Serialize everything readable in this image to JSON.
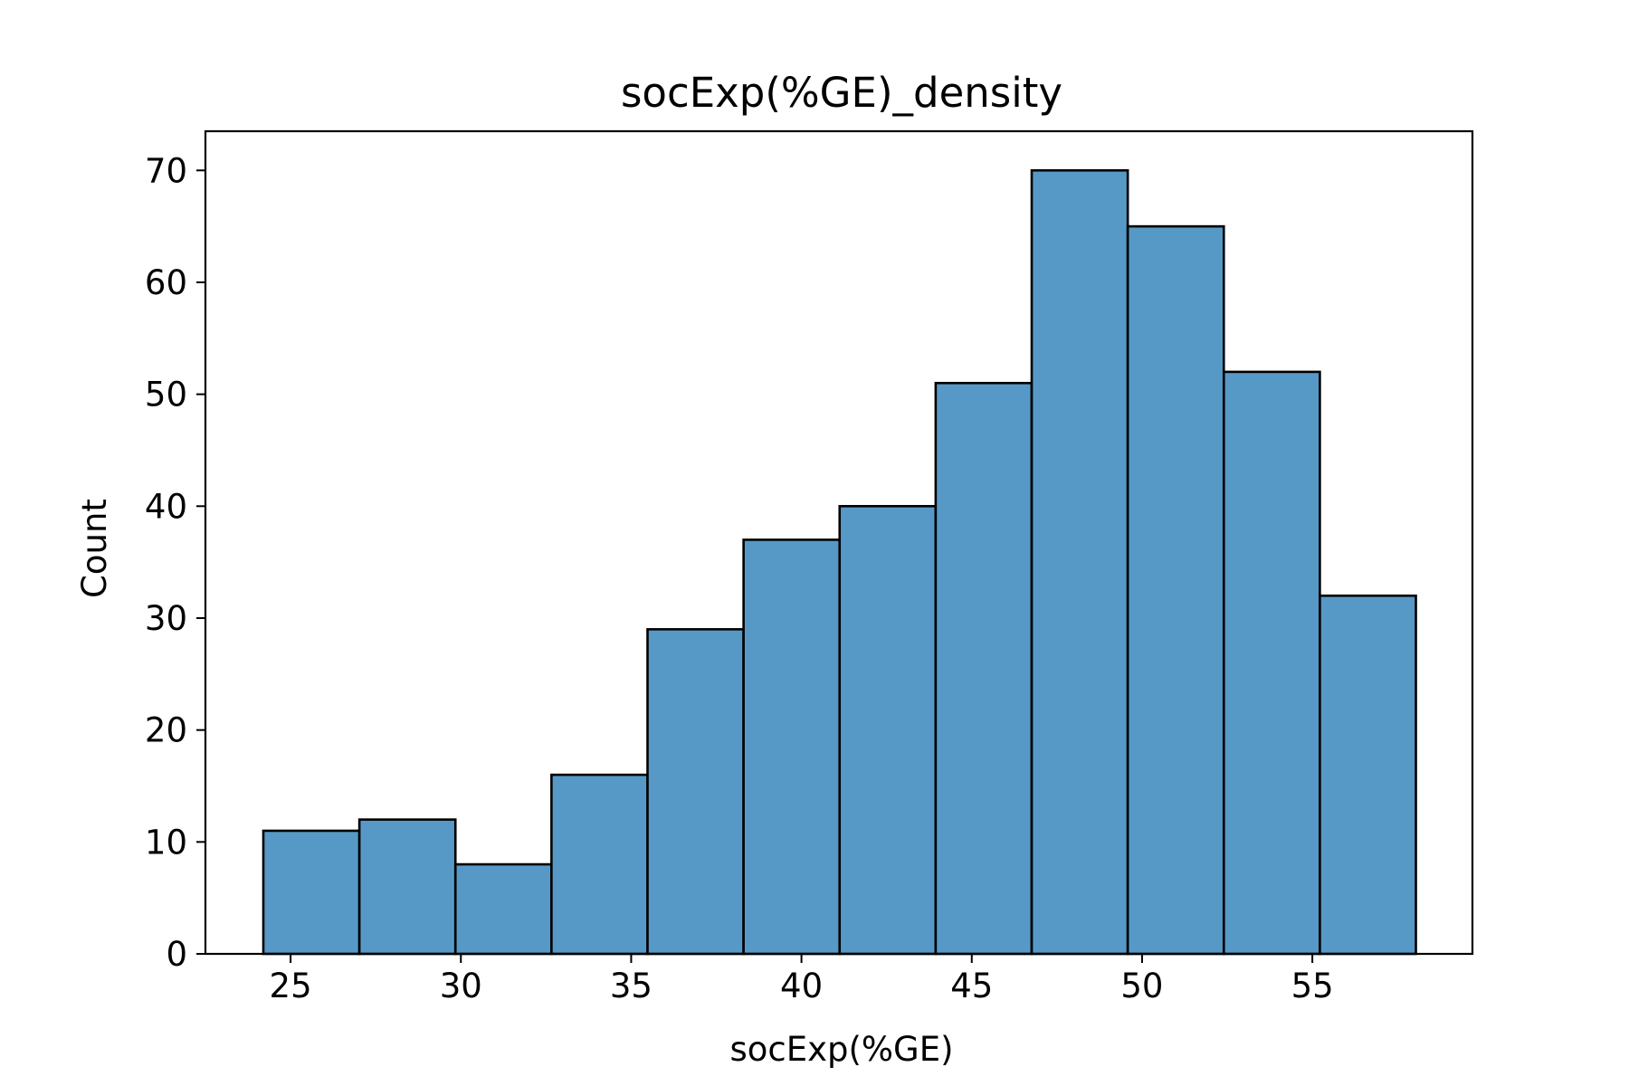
{
  "chart_data": {
    "type": "bar",
    "title": "socExp(%GE)_density",
    "xlabel": "socExp(%GE)",
    "ylabel": "Count",
    "bin_edges": [
      24.2,
      27.02,
      29.84,
      32.66,
      35.48,
      38.3,
      41.12,
      43.94,
      46.76,
      49.58,
      52.4,
      55.22,
      58.04
    ],
    "values": [
      11,
      12,
      8,
      16,
      29,
      37,
      40,
      51,
      70,
      65,
      52,
      32
    ],
    "xlim": [
      22.5,
      59.7
    ],
    "ylim": [
      0,
      73.5
    ],
    "xticks": [
      25,
      30,
      35,
      40,
      45,
      50,
      55
    ],
    "xtick_labels": [
      "25",
      "30",
      "35",
      "40",
      "45",
      "50",
      "55"
    ],
    "yticks": [
      0,
      10,
      20,
      30,
      40,
      50,
      60,
      70
    ],
    "ytick_labels": [
      "0",
      "10",
      "20",
      "30",
      "40",
      "50",
      "60",
      "70"
    ],
    "grid": false,
    "bar_color": "#5799c6",
    "edge_color": "#000000"
  }
}
